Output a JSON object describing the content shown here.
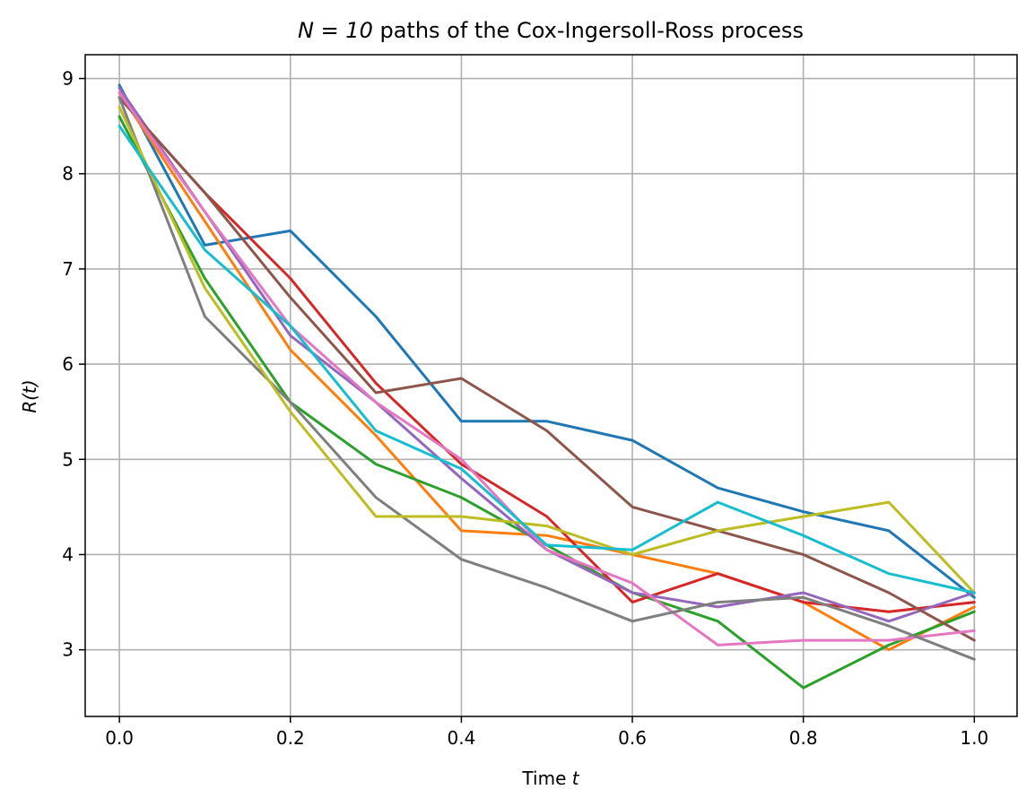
{
  "chart_data": {
    "type": "line",
    "title_math": "N = 10",
    "title_text": " paths of the Cox-Ingersoll-Ross process",
    "xlabel_text": "Time ",
    "xlabel_math": "t",
    "ylabel_math": "R(t)",
    "xlim": [
      -0.04,
      1.05
    ],
    "ylim": [
      2.3,
      9.25
    ],
    "xticks": [
      0.0,
      0.2,
      0.4,
      0.6,
      0.8,
      1.0
    ],
    "xtick_labels": [
      "0.0",
      "0.2",
      "0.4",
      "0.6",
      "0.8",
      "1.0"
    ],
    "yticks": [
      3,
      4,
      5,
      6,
      7,
      8,
      9
    ],
    "ytick_labels": [
      "3",
      "4",
      "5",
      "6",
      "7",
      "8",
      "9"
    ],
    "grid": true,
    "legend": "none",
    "x": [
      0.0,
      0.1,
      0.2,
      0.3,
      0.4,
      0.5,
      0.6,
      0.7,
      0.8,
      0.9,
      1.0
    ],
    "series": [
      {
        "color": "#1f77b4",
        "values": [
          8.93,
          7.25,
          7.4,
          6.5,
          5.4,
          5.4,
          5.2,
          4.7,
          4.45,
          4.25,
          3.55
        ]
      },
      {
        "color": "#ff7f0e",
        "values": [
          8.85,
          7.5,
          6.15,
          5.25,
          4.25,
          4.2,
          4.0,
          3.8,
          3.5,
          3.0,
          3.45
        ]
      },
      {
        "color": "#2ca02c",
        "values": [
          8.6,
          6.9,
          5.6,
          4.95,
          4.6,
          4.1,
          3.6,
          3.3,
          2.6,
          3.05,
          3.4
        ]
      },
      {
        "color": "#d62728",
        "values": [
          8.8,
          7.8,
          6.9,
          5.8,
          4.95,
          4.4,
          3.5,
          3.8,
          3.5,
          3.4,
          3.5
        ]
      },
      {
        "color": "#9467bd",
        "values": [
          8.9,
          7.6,
          6.3,
          5.6,
          4.8,
          4.05,
          3.6,
          3.45,
          3.6,
          3.3,
          3.6
        ]
      },
      {
        "color": "#8c564b",
        "values": [
          8.8,
          7.8,
          6.7,
          5.7,
          5.85,
          5.3,
          4.5,
          4.25,
          4.0,
          3.6,
          3.1
        ]
      },
      {
        "color": "#e377c2",
        "values": [
          8.85,
          7.6,
          6.4,
          5.6,
          5.0,
          4.05,
          3.7,
          3.05,
          3.1,
          3.1,
          3.2
        ]
      },
      {
        "color": "#7f7f7f",
        "values": [
          8.8,
          6.5,
          5.6,
          4.6,
          3.95,
          3.65,
          3.3,
          3.5,
          3.55,
          3.25,
          2.9
        ]
      },
      {
        "color": "#bcbd22",
        "values": [
          8.7,
          6.8,
          5.5,
          4.4,
          4.4,
          4.3,
          4.0,
          4.25,
          4.4,
          4.55,
          3.6
        ]
      },
      {
        "color": "#17becf",
        "values": [
          8.5,
          7.2,
          6.4,
          5.3,
          4.9,
          4.1,
          4.05,
          4.55,
          4.2,
          3.8,
          3.6
        ]
      }
    ]
  }
}
